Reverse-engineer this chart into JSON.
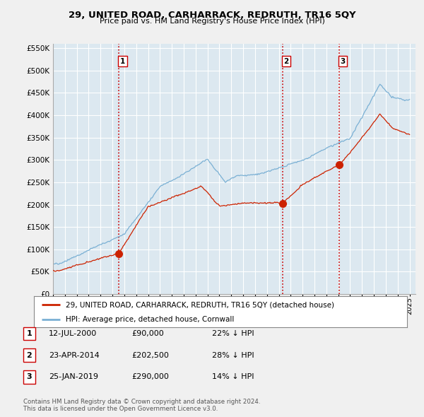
{
  "title": "29, UNITED ROAD, CARHARRACK, REDRUTH, TR16 5QY",
  "subtitle": "Price paid vs. HM Land Registry's House Price Index (HPI)",
  "ylim": [
    0,
    560000
  ],
  "yticks": [
    0,
    50000,
    100000,
    150000,
    200000,
    250000,
    300000,
    350000,
    400000,
    450000,
    500000,
    550000
  ],
  "xlim_start": 1995.0,
  "xlim_end": 2025.5,
  "legend_property": "29, UNITED ROAD, CARHARRACK, REDRUTH, TR16 5QY (detached house)",
  "legend_hpi": "HPI: Average price, detached house, Cornwall",
  "sale_points": [
    {
      "date_num": 2000.53,
      "price": 90000,
      "label": "1",
      "date_str": "12-JUL-2000",
      "price_str": "£90,000",
      "hpi_str": "22% ↓ HPI"
    },
    {
      "date_num": 2014.31,
      "price": 202500,
      "label": "2",
      "date_str": "23-APR-2014",
      "price_str": "£202,500",
      "hpi_str": "28% ↓ HPI"
    },
    {
      "date_num": 2019.07,
      "price": 290000,
      "label": "3",
      "date_str": "25-JAN-2019",
      "price_str": "£290,000",
      "hpi_str": "14% ↓ HPI"
    }
  ],
  "vline_color": "#cc0000",
  "property_line_color": "#cc2200",
  "hpi_line_color": "#7ab0d4",
  "plot_bg_color": "#dce8f0",
  "grid_color": "#ffffff",
  "fig_bg_color": "#f0f0f0",
  "footer": "Contains HM Land Registry data © Crown copyright and database right 2024.\nThis data is licensed under the Open Government Licence v3.0."
}
